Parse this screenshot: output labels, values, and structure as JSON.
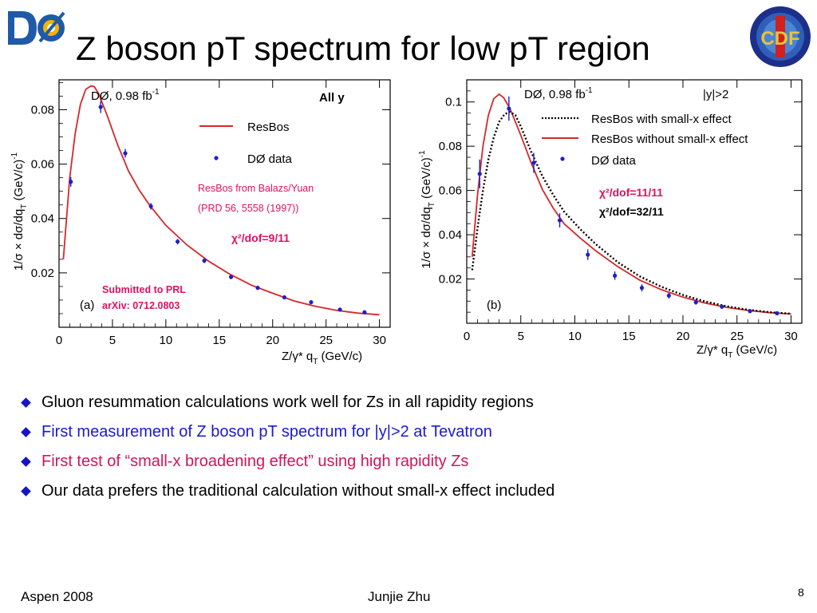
{
  "slide": {
    "title": "Z boson pT spectrum for low pT region",
    "page_number": "8",
    "footer_left": "Aspen 2008",
    "footer_center": "Junjie Zhu",
    "logos": {
      "left": "D0-logo",
      "right": "CDF-logo",
      "right_text": "CDF"
    }
  },
  "bullets": [
    {
      "text": "Gluon resummation calculations work well for Zs in all rapidity regions",
      "color": "#000000"
    },
    {
      "text": "First measurement of Z boson pT spectrum for |y|>2 at Tevatron",
      "color": "#1a1ad2"
    },
    {
      "text": "First test of “small-x broadening effect” using high rapidity Zs",
      "color": "#d4145a"
    },
    {
      "text": "Our data prefers the traditional calculation without small-x effect included",
      "color": "#000000"
    }
  ],
  "colors": {
    "resbos": "#d62728",
    "data": "#1f1fcc",
    "small_x": "#000000",
    "annotation": "#e0115f",
    "bullet_marker": "#1515c8"
  },
  "chart_data": [
    {
      "type": "line",
      "panel_label": "(a)",
      "experiment_label": "DØ, 0.98 fb",
      "lumi_exponent": "-1",
      "region_label": "All y",
      "xlabel": "Z/γ* q",
      "xlabel_sub": "T",
      "xlabel_unit": " (GeV/c)",
      "ylabel": "1/σ × dσ/dq",
      "ylabel_sub": "T",
      "ylabel_unit": " (GeV/c)",
      "ylabel_exp": "-1",
      "xlim": [
        0,
        31
      ],
      "ylim": [
        0,
        0.091
      ],
      "xticks": [
        0,
        5,
        10,
        15,
        20,
        25,
        30
      ],
      "yticks": [
        0.02,
        0.04,
        0.06,
        0.08
      ],
      "ytick_labels": [
        "0.02",
        "0.04",
        "0.06",
        "0.08"
      ],
      "annotations": {
        "source": [
          "ResBos from Balazs/Yuan",
          "(PRD 56, 5558 (1997))"
        ],
        "chi2": "χ²/dof=9/11",
        "submitted": [
          "Submitted to PRL",
          "arXiv: 0712.0803"
        ]
      },
      "legend": [
        {
          "name": "ResBos",
          "style": "line",
          "color": "#d62728"
        },
        {
          "name": "DØ data",
          "style": "point",
          "color": "#1f1fcc"
        }
      ],
      "series": [
        {
          "name": "ResBos",
          "kind": "line",
          "color": "#d62728",
          "x": [
            0.4,
            1.0,
            1.5,
            2.0,
            2.5,
            3.0,
            3.3,
            3.7,
            4.5,
            5.5,
            6.5,
            7.5,
            8.5,
            10,
            12,
            14,
            16,
            18,
            20,
            22,
            24,
            26,
            28,
            30
          ],
          "y": [
            0.025,
            0.055,
            0.071,
            0.082,
            0.0875,
            0.0888,
            0.0885,
            0.086,
            0.078,
            0.067,
            0.0575,
            0.0505,
            0.0448,
            0.0375,
            0.0302,
            0.0243,
            0.0195,
            0.0155,
            0.0125,
            0.0097,
            0.0077,
            0.0062,
            0.0052,
            0.0046
          ]
        },
        {
          "name": "DØ data",
          "kind": "points",
          "color": "#1f1fcc",
          "x": [
            1.1,
            3.9,
            6.2,
            8.6,
            11.1,
            13.6,
            16.1,
            18.6,
            21.1,
            23.6,
            26.3,
            28.6
          ],
          "y": [
            0.0535,
            0.081,
            0.064,
            0.0445,
            0.0315,
            0.0245,
            0.0185,
            0.0145,
            0.011,
            0.0092,
            0.0065,
            0.0055
          ],
          "err": [
            0.0018,
            0.0022,
            0.0016,
            0.0012,
            0.001,
            0.0009,
            0.0008,
            0.0007,
            0.0006,
            0.0006,
            0.0005,
            0.0005
          ]
        }
      ]
    },
    {
      "type": "line",
      "panel_label": "(b)",
      "experiment_label": "DØ, 0.98 fb",
      "lumi_exponent": "-1",
      "region_label": "|y|>2",
      "xlabel": "Z/γ* q",
      "xlabel_sub": "T",
      "xlabel_unit": " (GeV/c)",
      "ylabel": "1/σ × dσ/dq",
      "ylabel_sub": "T",
      "ylabel_unit": " (GeV/c)",
      "ylabel_exp": "-1",
      "xlim": [
        0,
        31
      ],
      "ylim": [
        0,
        0.11
      ],
      "xticks": [
        0,
        5,
        10,
        15,
        20,
        25,
        30
      ],
      "yticks": [
        0.02,
        0.04,
        0.06,
        0.08,
        0.1
      ],
      "ytick_labels": [
        "0.02",
        "0.04",
        "0.06",
        "0.08",
        "0.1"
      ],
      "annotations": {
        "chi2": [
          "χ²/dof=11/11",
          "χ²/dof=32/11"
        ]
      },
      "legend": [
        {
          "name": "ResBos with small-x effect",
          "style": "dotted",
          "color": "#000000"
        },
        {
          "name": "ResBos without small-x effect",
          "style": "line",
          "color": "#d62728"
        },
        {
          "name": "DØ data",
          "style": "point",
          "color": "#1f1fcc"
        }
      ],
      "series": [
        {
          "name": "ResBos without small-x effect",
          "kind": "line",
          "color": "#d62728",
          "x": [
            0.5,
            1.0,
            1.5,
            2.0,
            2.5,
            3.0,
            3.4,
            4.0,
            5.0,
            6.0,
            7.0,
            8.0,
            9.0,
            10.5,
            12,
            14,
            16,
            18,
            20,
            22,
            24,
            26,
            28,
            30
          ],
          "y": [
            0.03,
            0.058,
            0.08,
            0.094,
            0.1015,
            0.1035,
            0.102,
            0.097,
            0.085,
            0.072,
            0.0605,
            0.052,
            0.045,
            0.0385,
            0.0325,
            0.0255,
            0.0195,
            0.0152,
            0.0118,
            0.0092,
            0.0072,
            0.0058,
            0.0048,
            0.0042
          ]
        },
        {
          "name": "ResBos with small-x effect",
          "kind": "dotted",
          "color": "#000000",
          "x": [
            0.5,
            1.0,
            1.5,
            2.0,
            2.5,
            3.0,
            3.5,
            4.0,
            4.5,
            5.0,
            6.0,
            7.0,
            8.0,
            9.0,
            10.5,
            12,
            14,
            16,
            18,
            20,
            22,
            24,
            26,
            28,
            30
          ],
          "y": [
            0.024,
            0.043,
            0.06,
            0.074,
            0.084,
            0.091,
            0.0945,
            0.0955,
            0.094,
            0.089,
            0.077,
            0.0665,
            0.058,
            0.0505,
            0.0425,
            0.0355,
            0.0275,
            0.0212,
            0.0165,
            0.0128,
            0.0099,
            0.0077,
            0.0061,
            0.005,
            0.0043
          ]
        },
        {
          "name": "DØ data",
          "kind": "points",
          "color": "#1f1fcc",
          "x": [
            1.2,
            3.9,
            6.2,
            8.6,
            11.2,
            13.7,
            16.2,
            18.7,
            21.2,
            23.6,
            26.2,
            28.7
          ],
          "y": [
            0.0675,
            0.097,
            0.0725,
            0.0465,
            0.031,
            0.0215,
            0.016,
            0.0125,
            0.0095,
            0.0075,
            0.0055,
            0.0045
          ],
          "err": [
            0.0065,
            0.0055,
            0.0045,
            0.0032,
            0.0024,
            0.0019,
            0.0016,
            0.0013,
            0.0011,
            0.001,
            0.0009,
            0.0008
          ]
        }
      ]
    }
  ]
}
